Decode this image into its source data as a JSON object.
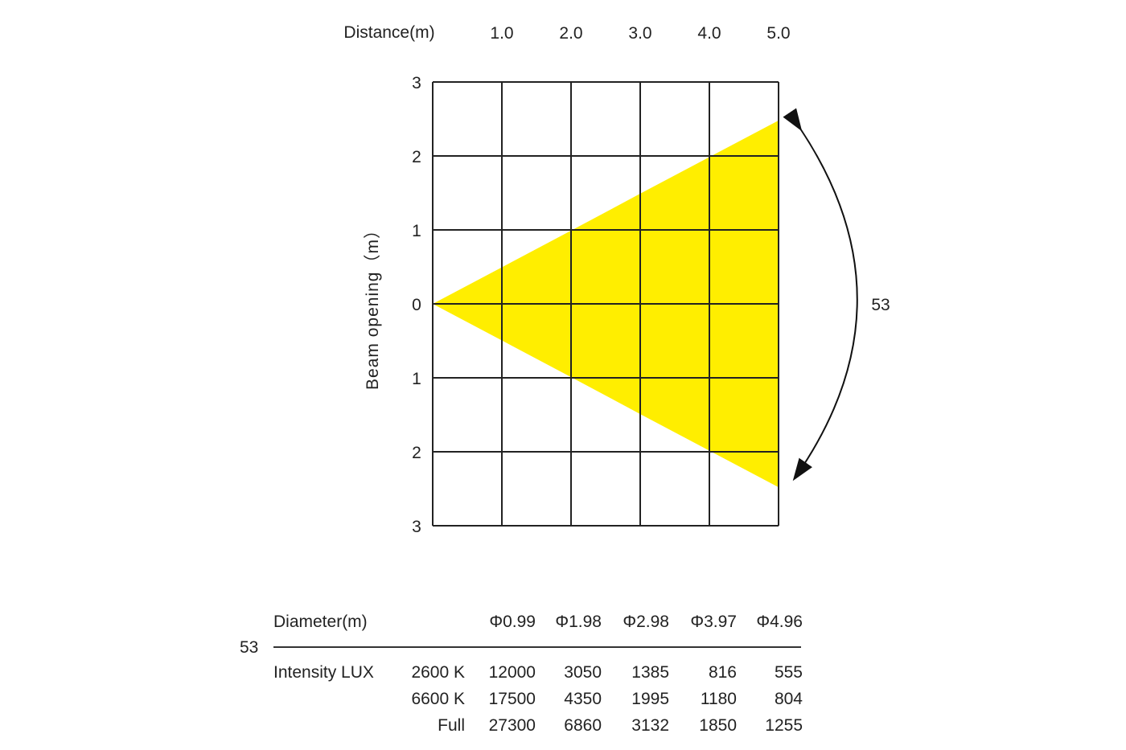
{
  "chart_data": {
    "type": "area",
    "title": "",
    "xlabel": "Distance(m)",
    "ylabel": "Beam opening（m）",
    "x_ticks": [
      "1.0",
      "2.0",
      "3.0",
      "4.0",
      "5.0"
    ],
    "y_ticks": [
      "3",
      "2",
      "1",
      "0",
      "1",
      "2",
      "3"
    ],
    "xlim": [
      0,
      5
    ],
    "ylim": [
      -3,
      3
    ],
    "grid": true,
    "beam_color": "#ffee00",
    "beam": {
      "x": [
        0,
        1,
        2,
        3,
        4,
        5
      ],
      "half_width": [
        0,
        0.495,
        0.99,
        1.49,
        1.985,
        2.48
      ]
    },
    "angle_label": "53"
  },
  "table": {
    "beam_angle": "53",
    "diameter_label": "Diameter(m)",
    "diameters": [
      "Φ0.99",
      "Φ1.98",
      "Φ2.98",
      "Φ3.97",
      "Φ4.96"
    ],
    "intensity_label": "Intensity LUX",
    "rows": [
      {
        "label": "2600 K",
        "values": [
          "12000",
          "3050",
          "1385",
          "816",
          "555"
        ]
      },
      {
        "label": "6600 K",
        "values": [
          "17500",
          "4350",
          "1995",
          "1180",
          "804"
        ]
      },
      {
        "label": "Full",
        "values": [
          "27300",
          "6860",
          "3132",
          "1850",
          "1255"
        ]
      }
    ]
  }
}
